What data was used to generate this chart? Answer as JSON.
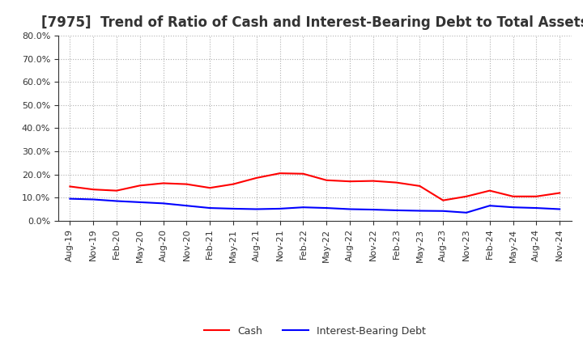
{
  "title": "[7975]  Trend of Ratio of Cash and Interest-Bearing Debt to Total Assets",
  "x_labels": [
    "Aug-19",
    "Nov-19",
    "Feb-20",
    "May-20",
    "Aug-20",
    "Nov-20",
    "Feb-21",
    "May-21",
    "Aug-21",
    "Nov-21",
    "Feb-22",
    "May-22",
    "Aug-22",
    "Nov-22",
    "Feb-23",
    "May-23",
    "Aug-23",
    "Nov-23",
    "Feb-24",
    "May-24",
    "Aug-24",
    "Nov-24"
  ],
  "cash": [
    14.8,
    13.5,
    13.0,
    15.2,
    16.2,
    15.8,
    14.2,
    15.8,
    18.5,
    20.5,
    20.3,
    17.5,
    17.0,
    17.2,
    16.5,
    15.0,
    8.8,
    10.5,
    13.0,
    10.5,
    10.5,
    12.0
  ],
  "ibd": [
    9.5,
    9.2,
    8.5,
    8.0,
    7.5,
    6.5,
    5.5,
    5.2,
    5.0,
    5.2,
    5.8,
    5.5,
    5.0,
    4.8,
    4.5,
    4.3,
    4.2,
    3.5,
    6.5,
    5.8,
    5.5,
    5.0
  ],
  "cash_color": "#ff0000",
  "ibd_color": "#0000ff",
  "ylim": [
    0,
    80
  ],
  "yticks": [
    0,
    10,
    20,
    30,
    40,
    50,
    60,
    70,
    80
  ],
  "background_color": "#ffffff",
  "grid_color": "#b0b0b0",
  "title_fontsize": 12,
  "tick_fontsize": 8,
  "legend_fontsize": 9
}
